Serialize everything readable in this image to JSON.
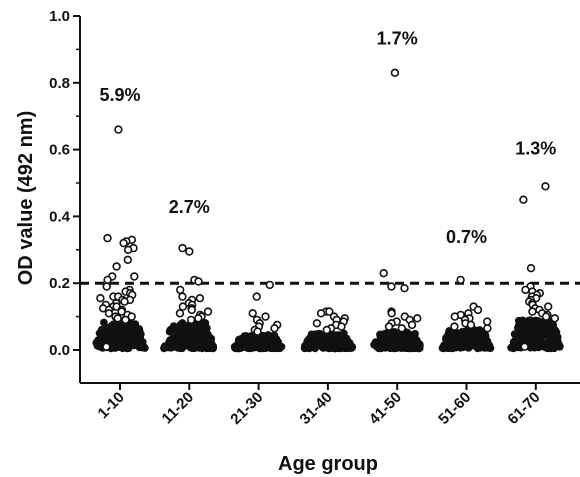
{
  "chart_data": {
    "type": "scatter",
    "xlabel": "Age group",
    "ylabel": "OD value (492 nm)",
    "ylim": [
      0,
      1.0
    ],
    "yticks": [
      "0.0",
      "0.2",
      "0.4",
      "0.6",
      "0.8",
      "1.0"
    ],
    "categories": [
      "1-10",
      "11-20",
      "21-30",
      "31-40",
      "41-50",
      "51-60",
      "61-70"
    ],
    "cutoff": 0.2,
    "percent_labels": [
      {
        "category": "1-10",
        "text": "5.9%",
        "y": 0.745
      },
      {
        "category": "11-20",
        "text": "2.7%",
        "y": 0.41
      },
      {
        "category": "41-50",
        "text": "1.7%",
        "y": 0.915
      },
      {
        "category": "51-60",
        "text": "0.7%",
        "y": 0.32
      },
      {
        "category": "61-70",
        "text": "1.3%",
        "y": 0.585
      }
    ],
    "groups": [
      {
        "category": "1-10",
        "max_dense": 0.085,
        "outliers": [
          0.66,
          0.335,
          0.33,
          0.325,
          0.32,
          0.305,
          0.3,
          0.27,
          0.25,
          0.22,
          0.22,
          0.21,
          0.19,
          0.18,
          0.175,
          0.17,
          0.165,
          0.16,
          0.16,
          0.155,
          0.15,
          0.15,
          0.145,
          0.14,
          0.135,
          0.13,
          0.13,
          0.125,
          0.12,
          0.12,
          0.115,
          0.11,
          0.105,
          0.1,
          0.1,
          0.095,
          0.09,
          0.09,
          0.01
        ]
      },
      {
        "category": "11-20",
        "max_dense": 0.085,
        "outliers": [
          0.305,
          0.295,
          0.21,
          0.205,
          0.18,
          0.16,
          0.155,
          0.15,
          0.14,
          0.135,
          0.13,
          0.125,
          0.12,
          0.115,
          0.11,
          0.105,
          0.1,
          0.095,
          0.09
        ]
      },
      {
        "category": "21-30",
        "max_dense": 0.045,
        "outliers": [
          0.195,
          0.16,
          0.11,
          0.1,
          0.09,
          0.08,
          0.075,
          0.07,
          0.065,
          0.06,
          0.055
        ]
      },
      {
        "category": "31-40",
        "max_dense": 0.05,
        "outliers": [
          0.115,
          0.115,
          0.11,
          0.1,
          0.095,
          0.09,
          0.085,
          0.08,
          0.075,
          0.07,
          0.065,
          0.06
        ]
      },
      {
        "category": "41-50",
        "max_dense": 0.055,
        "outliers": [
          0.83,
          0.23,
          0.19,
          0.185,
          0.115,
          0.11,
          0.1,
          0.095,
          0.09,
          0.085,
          0.08,
          0.075,
          0.07,
          0.065
        ]
      },
      {
        "category": "51-60",
        "max_dense": 0.06,
        "outliers": [
          0.21,
          0.13,
          0.12,
          0.11,
          0.105,
          0.1,
          0.095,
          0.09,
          0.085,
          0.08,
          0.075,
          0.07,
          0.065
        ]
      },
      {
        "category": "61-70",
        "max_dense": 0.09,
        "outliers": [
          0.49,
          0.45,
          0.245,
          0.19,
          0.18,
          0.175,
          0.17,
          0.165,
          0.16,
          0.155,
          0.15,
          0.145,
          0.14,
          0.135,
          0.13,
          0.125,
          0.12,
          0.115,
          0.11,
          0.105,
          0.1,
          0.095,
          0.01
        ]
      }
    ]
  }
}
